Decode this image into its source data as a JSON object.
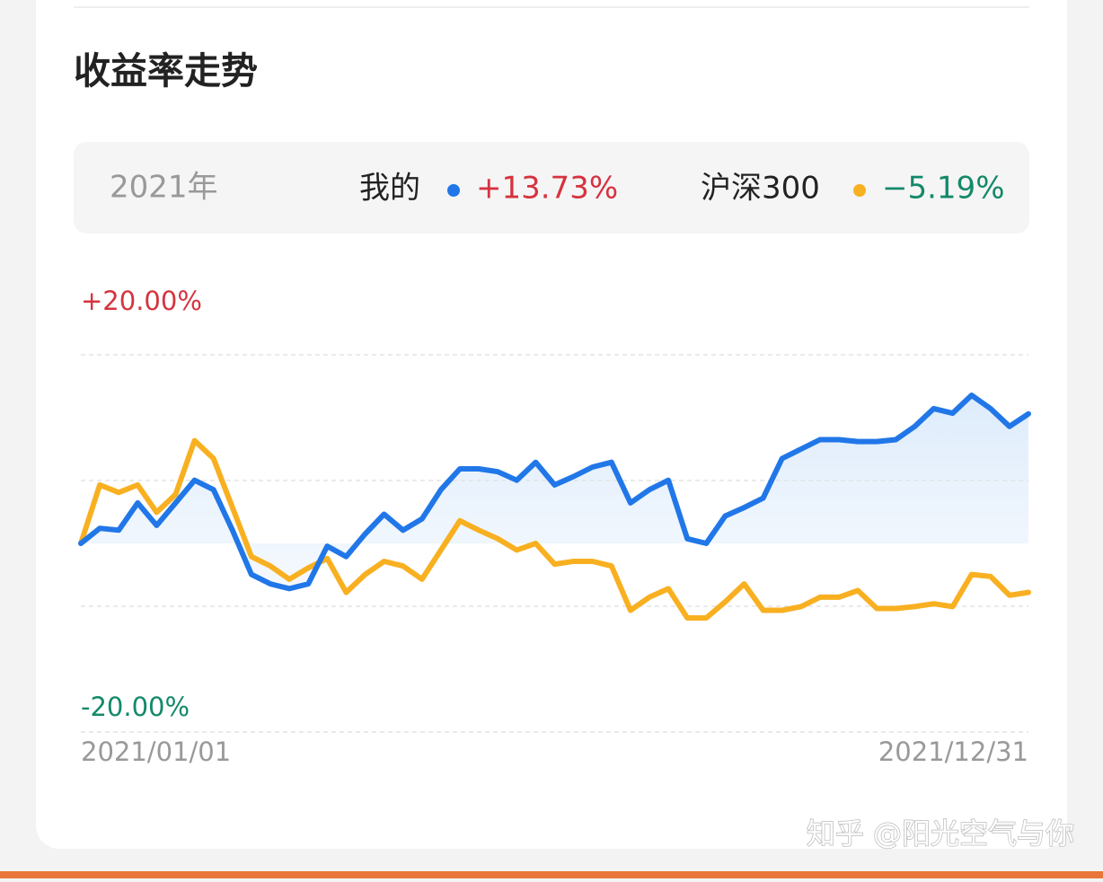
{
  "title": "收益率走势",
  "period": "2021年",
  "watermark": "知乎 @阳光空气与你",
  "chart_data": {
    "type": "line",
    "categories": [
      "2021/01/01",
      null,
      null,
      null,
      null,
      null,
      null,
      null,
      null,
      null,
      null,
      null,
      null,
      null,
      null,
      null,
      null,
      null,
      null,
      null,
      null,
      null,
      null,
      null,
      null,
      null,
      null,
      null,
      null,
      null,
      null,
      null,
      null,
      null,
      null,
      null,
      null,
      null,
      null,
      null,
      null,
      null,
      null,
      null,
      null,
      null,
      null,
      null,
      null,
      null,
      "2021/12/31"
    ],
    "series": [
      {
        "name": "我的",
        "color": "#2177e8",
        "total": 13.73,
        "total_label": "+13.73%",
        "total_color": "#d6333f",
        "fill": true,
        "values": [
          0,
          1.6,
          1.4,
          4.3,
          1.9,
          4.3,
          6.7,
          5.7,
          1.4,
          -3.3,
          -4.3,
          -4.8,
          -4.3,
          -0.3,
          -1.4,
          1.0,
          3.1,
          1.4,
          2.6,
          5.7,
          7.9,
          7.9,
          7.6,
          6.7,
          8.6,
          6.2,
          7.1,
          8.1,
          8.6,
          4.3,
          5.7,
          6.7,
          0.5,
          0,
          2.9,
          3.8,
          4.8,
          9.0,
          10.0,
          11.0,
          11.0,
          10.8,
          10.8,
          11.0,
          12.4,
          14.3,
          13.8,
          15.7,
          14.3,
          12.4,
          13.73
        ]
      },
      {
        "name": "沪深300",
        "color": "#f8b021",
        "total": -5.19,
        "total_label": "−5.19%",
        "total_color": "#13896a",
        "fill": false,
        "values": [
          0,
          6.2,
          5.4,
          6.2,
          3.3,
          5.2,
          10.9,
          9.0,
          3.8,
          -1.4,
          -2.4,
          -3.8,
          -2.6,
          -1.6,
          -5.2,
          -3.3,
          -1.9,
          -2.4,
          -3.8,
          -0.7,
          2.4,
          1.4,
          0.5,
          -0.7,
          0,
          -2.2,
          -1.9,
          -1.9,
          -2.4,
          -7.1,
          -5.7,
          -4.8,
          -7.9,
          -7.9,
          -6.2,
          -4.3,
          -7.1,
          -7.1,
          -6.7,
          -5.7,
          -5.7,
          -5.0,
          -6.9,
          -6.9,
          -6.7,
          -6.4,
          -6.7,
          -3.3,
          -3.5,
          -5.5,
          -5.19
        ]
      }
    ],
    "ylim": [
      -20,
      20
    ],
    "yticks": [
      {
        "value": 20,
        "label": "+20.00%",
        "color": "#d6333f"
      },
      6.67,
      -6.67,
      {
        "value": -20,
        "label": "-20.00%",
        "color": "#13896a"
      }
    ],
    "grid": true
  }
}
